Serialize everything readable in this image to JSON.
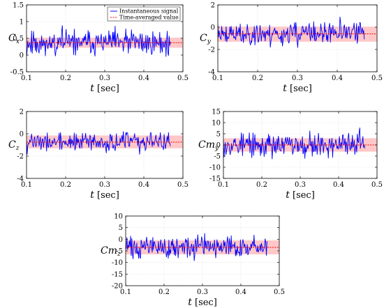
{
  "chart_data": [
    {
      "type": "line",
      "ylabel": "C",
      "ylabel_sub": "x",
      "xlabel": "t",
      "xunit": "[sec]",
      "xlim": [
        0.1,
        0.5
      ],
      "ylim": [
        -0.5,
        1.5
      ],
      "xticks": [
        0.1,
        0.2,
        0.3,
        0.4,
        0.5
      ],
      "xtick_labels": [
        "0.1",
        "0.2",
        "0.3",
        "0.4",
        "0.5"
      ],
      "yticks": [
        -0.5,
        0,
        0.5,
        1,
        1.5
      ],
      "ytick_labels": [
        "-0.5",
        "0",
        "0.5",
        "1",
        "1.5"
      ],
      "grid": true,
      "mean": 0.37,
      "band": [
        0.22,
        0.52
      ],
      "signal": {
        "t_start": 0.1,
        "t_end": 0.468,
        "amplitude": 0.3,
        "seed": 11,
        "first_value": -0.05
      },
      "legend": {
        "placement": "top-right",
        "entries": [
          "Instantaneous signal",
          "Time-averaged value"
        ]
      },
      "series": [
        {
          "name": "Instantaneous signal",
          "color": "#0000ff"
        },
        {
          "name": "Time-averaged value",
          "color": "#ff0000"
        }
      ],
      "band_color": "#ff9999"
    },
    {
      "type": "line",
      "ylabel": "C",
      "ylabel_sub": "y",
      "xlabel": "t",
      "xunit": "[sec]",
      "xlim": [
        0.1,
        0.5
      ],
      "ylim": [
        -4,
        2
      ],
      "xticks": [
        0.1,
        0.2,
        0.3,
        0.4,
        0.5
      ],
      "xtick_labels": [
        "0.1",
        "0.2",
        "0.3",
        "0.4",
        "0.5"
      ],
      "yticks": [
        -4,
        -2,
        0,
        2
      ],
      "ytick_labels": [
        "-4",
        "-2",
        "0",
        "2"
      ],
      "grid": true,
      "mean": -0.6,
      "band": [
        -1.3,
        0.05
      ],
      "signal": {
        "t_start": 0.1,
        "t_end": 0.468,
        "amplitude": 0.8,
        "seed": 23,
        "first_value": 0.3
      }
    },
    {
      "type": "line",
      "ylabel": "C",
      "ylabel_sub": "z",
      "xlabel": "t",
      "xunit": "[sec]",
      "xlim": [
        0.1,
        0.5
      ],
      "ylim": [
        -4,
        2
      ],
      "xticks": [
        0.1,
        0.2,
        0.3,
        0.4,
        0.5
      ],
      "xtick_labels": [
        "0.1",
        "0.2",
        "0.3",
        "0.4",
        "0.5"
      ],
      "yticks": [
        -4,
        -2,
        0,
        2
      ],
      "ytick_labels": [
        "-4",
        "-2",
        "0",
        "2"
      ],
      "grid": true,
      "mean": -0.75,
      "band": [
        -1.3,
        -0.15
      ],
      "signal": {
        "t_start": 0.1,
        "t_end": 0.468,
        "amplitude": 0.65,
        "seed": 37,
        "first_value": -0.6
      }
    },
    {
      "type": "line",
      "ylabel": "Cm",
      "ylabel_sub": "y",
      "xlabel": "t",
      "xunit": "[sec]",
      "xlim": [
        0.1,
        0.5
      ],
      "ylim": [
        -15,
        15
      ],
      "xticks": [
        0.1,
        0.2,
        0.3,
        0.4,
        0.5
      ],
      "xtick_labels": [
        "0.1",
        "0.2",
        "0.3",
        "0.4",
        "0.5"
      ],
      "yticks": [
        -15,
        -10,
        -5,
        0,
        5,
        10,
        15
      ],
      "ytick_labels": [
        "-15",
        "-10",
        "-5",
        "0",
        "5",
        "10",
        "15"
      ],
      "grid": true,
      "mean": 0,
      "band": [
        -3,
        3
      ],
      "signal": {
        "t_start": 0.1,
        "t_end": 0.468,
        "amplitude": 4.2,
        "seed": 53,
        "first_value": 2
      }
    },
    {
      "type": "line",
      "ylabel": "Cm",
      "ylabel_sub": "z",
      "xlabel": "t",
      "xunit": "[sec]",
      "xlim": [
        0.1,
        0.5
      ],
      "ylim": [
        -20,
        10
      ],
      "xticks": [
        0.1,
        0.2,
        0.3,
        0.4,
        0.5
      ],
      "xtick_labels": [
        "0.1",
        "0.2",
        "0.3",
        "0.4",
        "0.5"
      ],
      "yticks": [
        -20,
        -15,
        -10,
        -5,
        0,
        5,
        10
      ],
      "ytick_labels": [
        "-20",
        "-15",
        "-10",
        "-5",
        "0",
        "5",
        "10"
      ],
      "grid": true,
      "mean": -3.5,
      "band": [
        -6.5,
        -0.5
      ],
      "signal": {
        "t_start": 0.1,
        "t_end": 0.468,
        "amplitude": 4.0,
        "seed": 71,
        "first_value": -4
      }
    }
  ]
}
